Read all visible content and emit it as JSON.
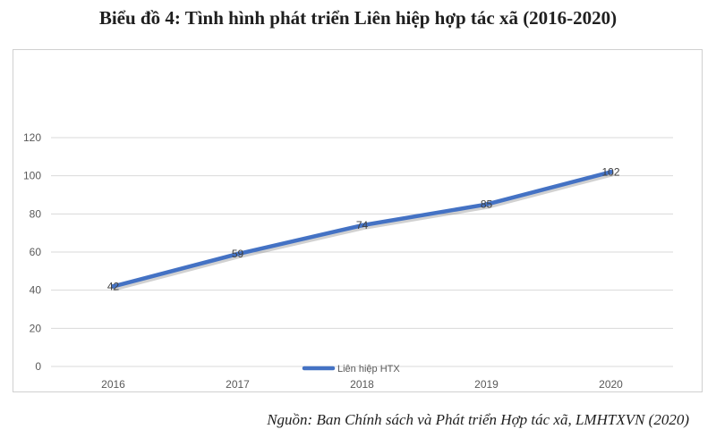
{
  "title": "Biểu đồ 4: Tình hình phát triển Liên hiệp hợp tác xã (2016-2020)",
  "source": "Nguồn: Ban Chính sách và Phát triển Hợp tác xã, LMHTXVN (2020)",
  "chart_data": {
    "type": "line",
    "categories": [
      "2016",
      "2017",
      "2018",
      "2019",
      "2020"
    ],
    "series": [
      {
        "name": "Liên hiệp HTX",
        "values": [
          42,
          59,
          74,
          85,
          102
        ],
        "color": "#4472C4"
      }
    ],
    "ylim": [
      0,
      120
    ],
    "yticks": [
      "0",
      "20",
      "40",
      "60",
      "80",
      "100",
      "120"
    ],
    "grid": true,
    "data_labels": true,
    "legend": "bottom"
  }
}
